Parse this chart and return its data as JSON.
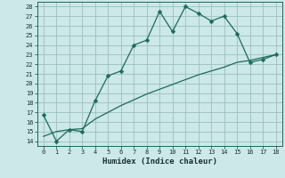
{
  "title": "",
  "xlabel": "Humidex (Indice chaleur)",
  "bg_color": "#cce8e8",
  "line_color": "#1a6b5a",
  "grid_color": "#9bbfbf",
  "xlim": [
    -0.5,
    18.5
  ],
  "ylim": [
    13.5,
    28.5
  ],
  "xticks": [
    0,
    1,
    2,
    3,
    4,
    5,
    6,
    7,
    8,
    9,
    10,
    11,
    12,
    13,
    14,
    15,
    16,
    17,
    18
  ],
  "yticks": [
    14,
    15,
    16,
    17,
    18,
    19,
    20,
    21,
    22,
    23,
    24,
    25,
    26,
    27,
    28
  ],
  "line1_x": [
    0,
    1,
    2,
    3,
    4,
    5,
    6,
    7,
    8,
    9,
    10,
    11,
    12,
    13,
    14,
    15,
    16,
    17,
    18
  ],
  "line1_y": [
    16.7,
    14.0,
    15.2,
    15.0,
    18.2,
    20.8,
    21.3,
    24.0,
    24.5,
    27.5,
    25.4,
    28.0,
    27.3,
    26.5,
    27.0,
    25.2,
    22.2,
    22.5,
    23.0
  ],
  "line2_x": [
    0,
    1,
    2,
    3,
    4,
    5,
    6,
    7,
    8,
    9,
    10,
    11,
    12,
    13,
    14,
    15,
    16,
    17,
    18
  ],
  "line2_y": [
    14.5,
    15.0,
    15.2,
    15.3,
    16.3,
    17.0,
    17.7,
    18.3,
    18.9,
    19.4,
    19.9,
    20.4,
    20.9,
    21.3,
    21.7,
    22.2,
    22.4,
    22.7,
    23.0
  ],
  "markersize": 2.5,
  "linewidth": 0.9,
  "font_family": "monospace",
  "tick_fontsize": 5.0,
  "xlabel_fontsize": 6.5
}
